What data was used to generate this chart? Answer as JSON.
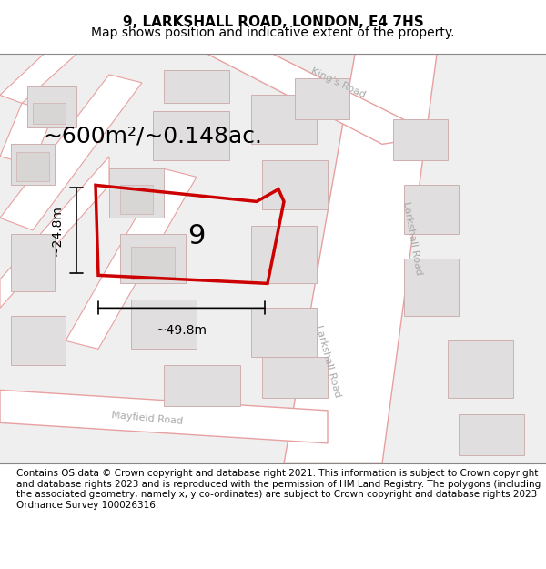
{
  "title": "9, LARKSHALL ROAD, LONDON, E4 7HS",
  "subtitle": "Map shows position and indicative extent of the property.",
  "footer": "Contains OS data © Crown copyright and database right 2021. This information is subject to Crown copyright and database rights 2023 and is reproduced with the permission of HM Land Registry. The polygons (including the associated geometry, namely x, y co-ordinates) are subject to Crown copyright and database rights 2023 Ordnance Survey 100026316.",
  "area_label": "~600m²/~0.148ac.",
  "width_label": "~49.8m",
  "height_label": "~24.8m",
  "number_label": "9",
  "bg_color": "#f5f5f5",
  "map_bg": "#f0efef",
  "road_fill": "#ffffff",
  "road_stroke": "#e8a0a0",
  "block_fill": "#e0dede",
  "block_stroke": "#d0b0b0",
  "plot_stroke": "#cc0000",
  "plot_fill": "none",
  "dim_line_color": "#000000",
  "title_fontsize": 11,
  "subtitle_fontsize": 10,
  "footer_fontsize": 7.5,
  "area_fontsize": 18,
  "label_fontsize": 13,
  "number_fontsize": 22
}
